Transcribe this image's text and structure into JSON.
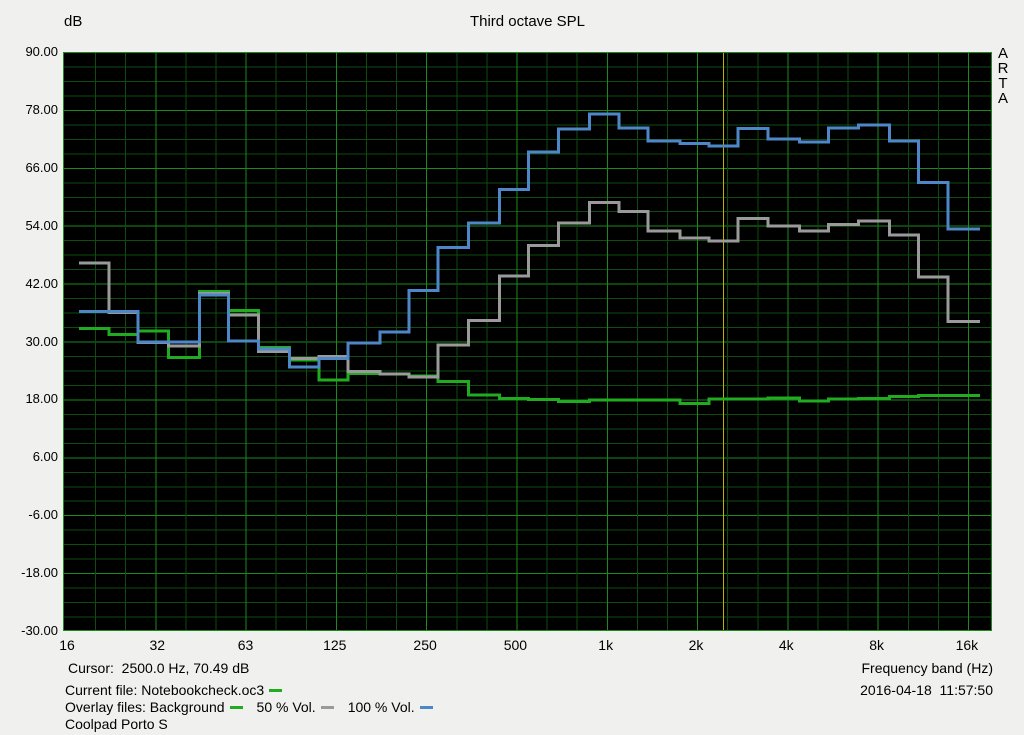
{
  "header": {
    "y_axis_unit": "dB",
    "title": "Third octave SPL"
  },
  "brand": {
    "letters": [
      "A",
      "R",
      "T",
      "A"
    ]
  },
  "status": {
    "cursor_line": "Cursor:  2500.0 Hz, 70.49 dB",
    "current_file_label": "Current file: Notebookcheck.oc3",
    "overlay_label": "Overlay files: Background",
    "overlay_50_label": "50 % Vol.",
    "overlay_100_label": "100 % Vol.",
    "device_name": "Coolpad Porto S",
    "x_axis_title": "Frequency band (Hz)",
    "datetime": "2016-04-18  11:57:50"
  },
  "colors": {
    "page_bg": "#f0f0ef",
    "plot_bg": "#000000",
    "grid_major": "#1c8a1c",
    "grid_minor": "#0e4d0e",
    "border": "#1c8a1c",
    "cursor_line": "#b9b400",
    "text": "#000000"
  },
  "chart_data": {
    "type": "line",
    "step": true,
    "title": "Third octave SPL",
    "xlabel": "Frequency band (Hz)",
    "ylabel": "dB",
    "x_scale": "log-octave",
    "xlim_hz": [
      16,
      19500
    ],
    "ylim": [
      -30,
      90
    ],
    "grid": "on",
    "y_ticks": [
      90,
      78,
      66,
      54,
      42,
      30,
      18,
      6,
      -6,
      -18,
      -30
    ],
    "y_minor_step_db": 3,
    "x_ticks": [
      {
        "f": 16,
        "label": "16"
      },
      {
        "f": 32,
        "label": "32"
      },
      {
        "f": 63,
        "label": "63"
      },
      {
        "f": 125,
        "label": "125"
      },
      {
        "f": 250,
        "label": "250"
      },
      {
        "f": 500,
        "label": "500"
      },
      {
        "f": 1000,
        "label": "1k"
      },
      {
        "f": 2000,
        "label": "2k"
      },
      {
        "f": 4000,
        "label": "4k"
      },
      {
        "f": 8000,
        "label": "8k"
      },
      {
        "f": 16000,
        "label": "16k"
      }
    ],
    "cursor": {
      "freq_hz": 2500,
      "db": 70.49
    },
    "bands_hz": [
      20,
      25,
      31.5,
      40,
      50,
      63,
      80,
      100,
      125,
      160,
      200,
      250,
      315,
      400,
      500,
      630,
      800,
      1000,
      1250,
      1600,
      2000,
      2500,
      3150,
      4000,
      5000,
      6300,
      8000,
      10000,
      12500,
      16000
    ],
    "series": [
      {
        "name": "Background",
        "color": "#21ab21",
        "values": [
          32.7,
          31.5,
          32.2,
          26.7,
          40.4,
          36.4,
          28.8,
          26.2,
          22.0,
          23.4,
          23.3,
          22.8,
          21.7,
          18.9,
          18.2,
          18.0,
          17.6,
          17.9,
          17.9,
          17.9,
          17.1,
          18.1,
          18.1,
          18.3,
          17.7,
          18.1,
          18.2,
          18.6,
          18.8,
          18.8
        ]
      },
      {
        "name": "50 % Vol.",
        "color": "#9a9a9a",
        "values": [
          46.3,
          36.0,
          29.8,
          29.1,
          40.0,
          35.5,
          27.9,
          26.5,
          26.9,
          23.8,
          23.3,
          22.6,
          29.3,
          34.4,
          43.6,
          49.9,
          54.6,
          58.8,
          56.9,
          52.9,
          51.5,
          50.8,
          55.5,
          53.9,
          52.9,
          54.3,
          55.0,
          52.1,
          43.4,
          34.1
        ]
      },
      {
        "name": "100 % Vol.",
        "color": "#4e87c8",
        "values": [
          36.2,
          36.2,
          29.9,
          29.9,
          39.6,
          30.1,
          28.4,
          24.7,
          26.5,
          29.7,
          32.0,
          40.6,
          49.5,
          54.6,
          61.5,
          69.3,
          74.0,
          77.2,
          74.2,
          71.6,
          71.0,
          70.5,
          74.1,
          72.0,
          71.3,
          74.2,
          74.9,
          71.6,
          63.0,
          53.3
        ]
      }
    ],
    "legend_position": "bottom-status-bar"
  }
}
